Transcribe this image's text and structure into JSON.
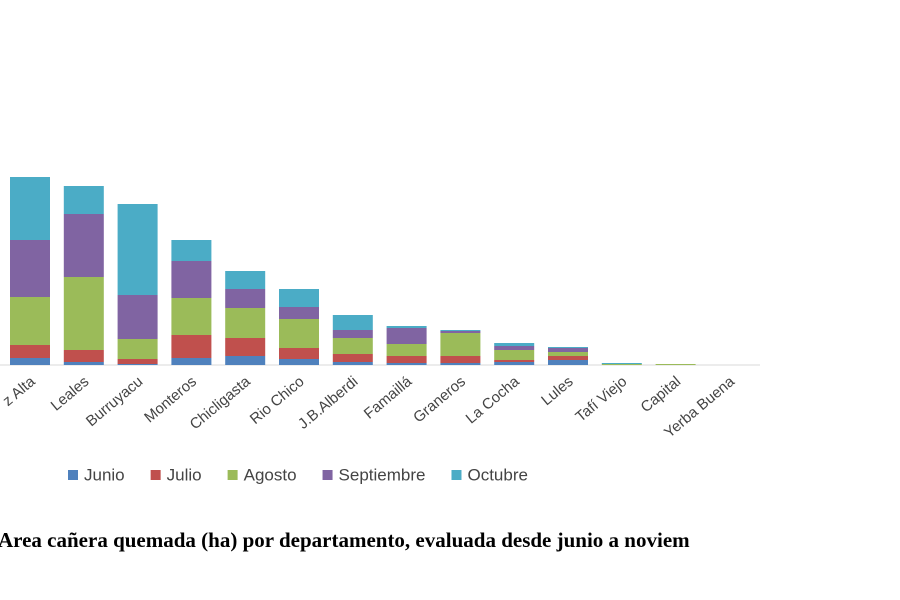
{
  "chart_data": {
    "type": "stacked-bar",
    "title": "Area cañera quemada (ha) por departamento, evaluada desde junio a noviem",
    "categories": [
      "z Alta",
      "Leales",
      "Burruyacu",
      "Monteros",
      "Chicligasta",
      "Rio Chico",
      "J.B.Alberdi",
      "Famaillá",
      "Graneros",
      "La Cocha",
      "Lules",
      "Tafí Viejo",
      "Capital",
      "Yerba Buena"
    ],
    "series": [
      {
        "name": "Junio",
        "color": "#4f81bd",
        "values": [
          7,
          3,
          1,
          7,
          9,
          6,
          3,
          2,
          2,
          3,
          5,
          0,
          0,
          0
        ]
      },
      {
        "name": "Julio",
        "color": "#c0504d",
        "values": [
          13,
          12,
          5,
          23,
          18,
          11,
          8,
          7,
          7,
          2,
          4,
          0,
          0,
          0
        ]
      },
      {
        "name": "Agosto",
        "color": "#9bbb59",
        "values": [
          48,
          73,
          20,
          37,
          30,
          29,
          16,
          12,
          23,
          10,
          4,
          1,
          1,
          0
        ]
      },
      {
        "name": "Septiembre",
        "color": "#8064a2",
        "values": [
          57,
          63,
          44,
          37,
          19,
          12,
          8,
          16,
          2,
          4,
          4,
          0,
          0,
          0
        ]
      },
      {
        "name": "Octubre",
        "color": "#4bacc6",
        "values": [
          63,
          28,
          91,
          21,
          18,
          18,
          15,
          2,
          1,
          3,
          1,
          1,
          0,
          0
        ]
      }
    ],
    "legend": "bottom"
  }
}
